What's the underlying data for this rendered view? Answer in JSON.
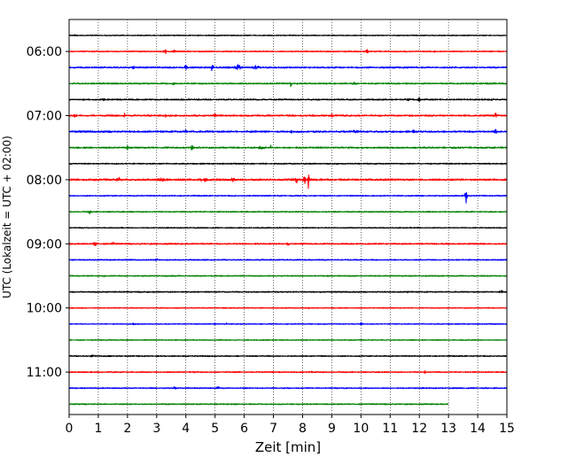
{
  "chart_data": {
    "type": "line",
    "kind": "helicorder",
    "xlabel": "Zeit  [min]",
    "ylabel": "UTC (Lokalzeit = UTC + 02:00)",
    "xlim": [
      0,
      15
    ],
    "x_ticks": [
      "0",
      "1",
      "2",
      "3",
      "4",
      "5",
      "6",
      "7",
      "8",
      "9",
      "10",
      "11",
      "12",
      "13",
      "14",
      "15"
    ],
    "y_tick_labels": [
      "06:00",
      "07:00",
      "08:00",
      "09:00",
      "10:00",
      "11:00"
    ],
    "vertical_grid": "dotted",
    "line_minutes": 15,
    "colors": [
      "#000000",
      "#ff0000",
      "#0000ff",
      "#008000"
    ],
    "traces": [
      {
        "start": "05:45",
        "end_min": 15,
        "noise": 0.25,
        "events": [
          [
            0.2,
            0.6,
            3
          ],
          [
            0.8,
            0.4,
            3
          ],
          [
            5.0,
            0.5,
            3
          ]
        ]
      },
      {
        "start": "06:00",
        "end_min": 15,
        "noise": 0.3,
        "events": [
          [
            3.3,
            1.4,
            5
          ],
          [
            3.6,
            1.0,
            4
          ],
          [
            10.2,
            2.2,
            3
          ],
          [
            12.5,
            0.5,
            3
          ]
        ]
      },
      {
        "start": "06:15",
        "end_min": 15,
        "noise": 0.4,
        "events": [
          [
            4.0,
            1.3,
            5
          ],
          [
            4.9,
            2.2,
            4
          ],
          [
            5.8,
            1.7,
            10
          ],
          [
            6.4,
            1.2,
            10
          ],
          [
            2.2,
            0.6,
            4
          ]
        ]
      },
      {
        "start": "06:30",
        "end_min": 15,
        "noise": 0.35,
        "events": [
          [
            3.6,
            0.8,
            4
          ],
          [
            7.6,
            1.8,
            4
          ],
          [
            9.8,
            0.9,
            6
          ],
          [
            14.3,
            0.5,
            3
          ]
        ]
      },
      {
        "start": "06:45",
        "end_min": 15,
        "noise": 0.35,
        "events": [
          [
            1.2,
            0.7,
            4
          ],
          [
            11.6,
            1.0,
            6
          ],
          [
            12.0,
            1.6,
            3
          ],
          [
            14.5,
            0.6,
            3
          ]
        ]
      },
      {
        "start": "07:00",
        "end_min": 15,
        "noise": 0.4,
        "events": [
          [
            0.2,
            1.2,
            4
          ],
          [
            1.9,
            1.0,
            4
          ],
          [
            3.3,
            0.8,
            4
          ],
          [
            5.0,
            0.7,
            4
          ],
          [
            9.0,
            0.8,
            4
          ],
          [
            14.6,
            2.2,
            4
          ]
        ]
      },
      {
        "start": "07:15",
        "end_min": 15,
        "noise": 0.45,
        "events": [
          [
            4.0,
            0.8,
            4
          ],
          [
            7.6,
            0.8,
            4
          ],
          [
            9.8,
            1.0,
            8
          ],
          [
            11.8,
            0.8,
            4
          ],
          [
            14.6,
            1.4,
            6
          ]
        ]
      },
      {
        "start": "07:30",
        "end_min": 15,
        "noise": 0.4,
        "events": [
          [
            2.0,
            0.8,
            4
          ],
          [
            4.2,
            1.3,
            6
          ],
          [
            6.6,
            1.1,
            8
          ],
          [
            6.9,
            1.6,
            3
          ]
        ]
      },
      {
        "start": "07:45",
        "end_min": 15,
        "noise": 0.3,
        "events": [
          [
            2.0,
            0.4,
            3
          ]
        ]
      },
      {
        "start": "08:00",
        "end_min": 15,
        "noise": 0.5,
        "events": [
          [
            1.7,
            1.2,
            6
          ],
          [
            3.2,
            1.0,
            10
          ],
          [
            4.6,
            1.2,
            10
          ],
          [
            5.6,
            1.3,
            10
          ],
          [
            7.8,
            2.5,
            4
          ],
          [
            8.1,
            3.5,
            6
          ],
          [
            8.2,
            4.4,
            4
          ]
        ]
      },
      {
        "start": "08:15",
        "end_min": 15,
        "noise": 0.3,
        "events": [
          [
            13.6,
            6.0,
            3
          ]
        ]
      },
      {
        "start": "08:30",
        "end_min": 15,
        "noise": 0.3,
        "events": [
          [
            0.7,
            1.0,
            4
          ]
        ]
      },
      {
        "start": "08:45",
        "end_min": 15,
        "noise": 0.25,
        "events": [
          [
            1.8,
            0.7,
            3
          ],
          [
            7.2,
            0.4,
            3
          ]
        ]
      },
      {
        "start": "09:00",
        "end_min": 15,
        "noise": 0.35,
        "events": [
          [
            0.9,
            1.8,
            6
          ],
          [
            1.5,
            1.2,
            4
          ],
          [
            7.5,
            0.9,
            3
          ]
        ]
      },
      {
        "start": "09:15",
        "end_min": 15,
        "noise": 0.3,
        "events": [
          [
            3.0,
            0.8,
            4
          ],
          [
            6.6,
            0.6,
            3
          ],
          [
            12.0,
            0.5,
            3
          ]
        ]
      },
      {
        "start": "09:30",
        "end_min": 15,
        "noise": 0.3,
        "events": [
          [
            1.2,
            0.4,
            3
          ]
        ]
      },
      {
        "start": "09:45",
        "end_min": 15,
        "noise": 0.3,
        "events": [
          [
            2.0,
            0.5,
            3
          ],
          [
            11.6,
            0.7,
            3
          ],
          [
            14.8,
            1.2,
            5
          ]
        ]
      },
      {
        "start": "10:00",
        "end_min": 15,
        "noise": 0.25,
        "events": [
          [
            8.2,
            0.4,
            3
          ]
        ]
      },
      {
        "start": "10:15",
        "end_min": 15,
        "noise": 0.25,
        "events": [
          [
            2.2,
            0.5,
            3
          ],
          [
            5.0,
            0.6,
            3
          ],
          [
            5.4,
            0.6,
            3
          ],
          [
            10.0,
            0.8,
            5
          ]
        ]
      },
      {
        "start": "10:30",
        "end_min": 15,
        "noise": 0.25,
        "events": [
          [
            5.2,
            0.3,
            3
          ]
        ]
      },
      {
        "start": "10:45",
        "end_min": 15,
        "noise": 0.3,
        "events": [
          [
            0.8,
            1.1,
            6
          ]
        ]
      },
      {
        "start": "11:00",
        "end_min": 15,
        "noise": 0.3,
        "events": [
          [
            4.3,
            0.8,
            3
          ],
          [
            8.3,
            0.6,
            3
          ],
          [
            12.2,
            1.0,
            3
          ]
        ]
      },
      {
        "start": "11:15",
        "end_min": 15,
        "noise": 0.3,
        "events": [
          [
            3.6,
            0.9,
            4
          ],
          [
            5.1,
            1.4,
            4
          ],
          [
            9.5,
            0.4,
            3
          ]
        ]
      },
      {
        "start": "11:30",
        "end_min": 13.0,
        "noise": 0.3,
        "events": []
      }
    ]
  }
}
